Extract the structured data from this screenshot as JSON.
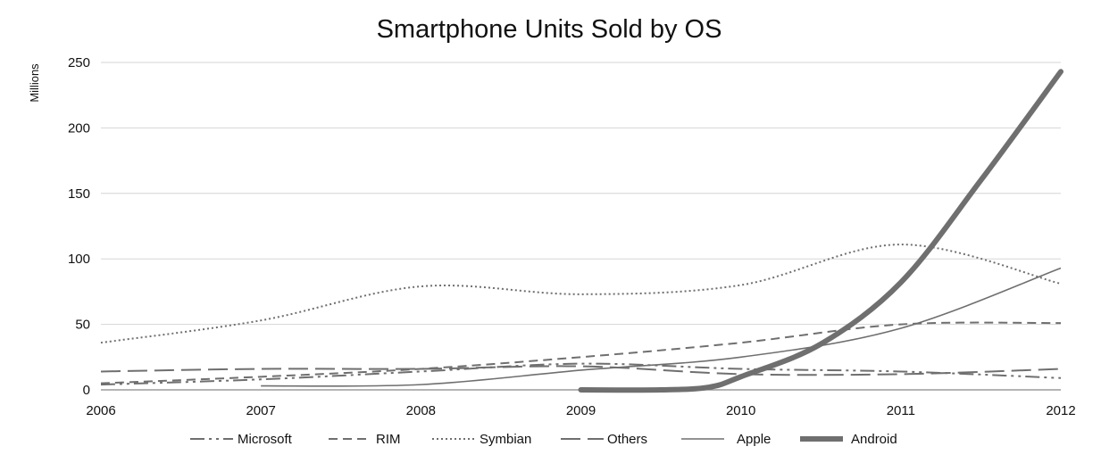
{
  "chart_data": {
    "type": "line",
    "title": "Smartphone Units Sold by OS",
    "xlabel": "",
    "ylabel": "Millions",
    "x": [
      2006,
      2007,
      2008,
      2009,
      2010,
      2011,
      2012
    ],
    "x_tick_labels": [
      "2006",
      "2007",
      "2008",
      "2009",
      "2010",
      "2011",
      "2012"
    ],
    "y_ticks": [
      0,
      50,
      100,
      150,
      200,
      250
    ],
    "y_tick_labels": [
      "0",
      "50",
      "100",
      "150",
      "200",
      "250"
    ],
    "xlim": [
      2006,
      2012
    ],
    "ylim": [
      0,
      250
    ],
    "grid": "horizontal",
    "legend_position": "bottom",
    "series": [
      {
        "name": "Microsoft",
        "style": "dashdotdot",
        "width": 2,
        "x": [
          2006,
          2007,
          2008,
          2009,
          2010,
          2011,
          2012
        ],
        "values": [
          4,
          8,
          14,
          20,
          16,
          14,
          9
        ]
      },
      {
        "name": "RIM",
        "style": "dash",
        "width": 2,
        "x": [
          2006,
          2007,
          2008,
          2009,
          2010,
          2011,
          2012
        ],
        "values": [
          5,
          10,
          16,
          25,
          36,
          50,
          51
        ]
      },
      {
        "name": "Symbian",
        "style": "dot",
        "width": 2,
        "x": [
          2006,
          2007,
          2008,
          2009,
          2010,
          2011,
          2012
        ],
        "values": [
          36,
          53,
          79,
          73,
          80,
          111,
          81
        ]
      },
      {
        "name": "Others",
        "style": "longdash",
        "width": 2,
        "x": [
          2006,
          2007,
          2008,
          2009,
          2010,
          2011,
          2012
        ],
        "values": [
          14,
          16,
          16,
          18,
          12,
          12,
          16
        ]
      },
      {
        "name": "Apple",
        "style": "solid",
        "width": 1.6,
        "x": [
          2007,
          2008,
          2009,
          2010,
          2011,
          2012
        ],
        "values": [
          3,
          4,
          15,
          25,
          47,
          93
        ]
      },
      {
        "name": "Android",
        "style": "solid",
        "width": 6,
        "x": [
          2009,
          2009.5,
          2009.8,
          2010,
          2010.5,
          2011,
          2011.5,
          2012
        ],
        "values": [
          0,
          0,
          2,
          10,
          35,
          82,
          160,
          243
        ]
      }
    ]
  }
}
